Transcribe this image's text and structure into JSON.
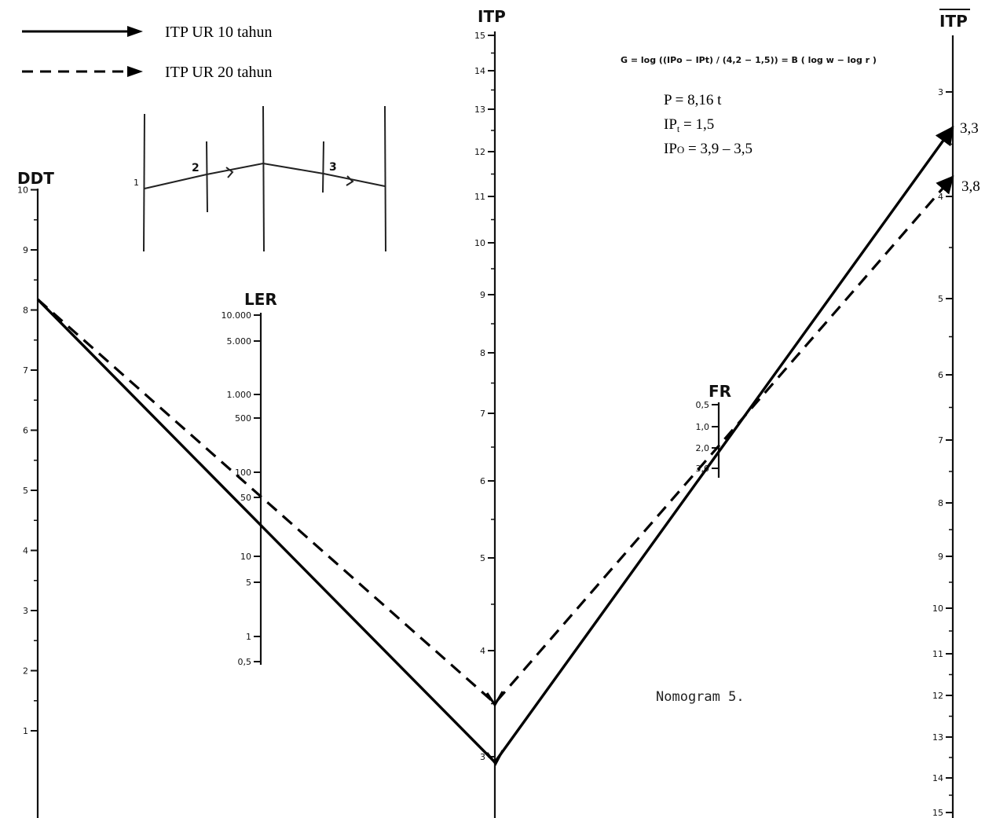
{
  "legend": {
    "solid_label": "ITP UR 10 tahun",
    "dashed_label": "ITP UR 20 tahun"
  },
  "formula": "G = log ((IPo − IPt) / (4,2 − 1,5)) = B ( log w − log r )",
  "parameters": {
    "p": "P = 8,16 t",
    "ipt_base": "IP",
    "ipt_sub": "t",
    "ipt_rest": " = 1,5",
    "ipo_base": "IP",
    "ipo_sub": "O",
    "ipo_rest": " = 3,9 – 3,5"
  },
  "caption": "Nomogram  5.",
  "scales": {
    "ddt": {
      "title": "DDT",
      "ticks": [
        "1",
        "2",
        "3",
        "4",
        "5",
        "6",
        "7",
        "8",
        "9",
        "10"
      ]
    },
    "ler": {
      "title": "LER",
      "ticks": [
        "0,5",
        "1",
        "5",
        "10",
        "50",
        "100",
        "500",
        "1.000",
        "5.000",
        "10.000"
      ]
    },
    "itp": {
      "title": "ITP",
      "ticks": [
        "3",
        "4",
        "5",
        "6",
        "7",
        "8",
        "9",
        "10",
        "11",
        "12",
        "13",
        "14",
        "15"
      ]
    },
    "fr": {
      "title": "FR",
      "ticks": [
        "0,5",
        "1,0",
        "2,0",
        "3,0"
      ]
    },
    "itp_bar": {
      "title": "ITP",
      "ticks": [
        "3",
        "4",
        "5",
        "6",
        "7",
        "8",
        "9",
        "10",
        "11",
        "12",
        "13",
        "14",
        "15"
      ]
    }
  },
  "inset": {
    "labels": [
      "1",
      "2",
      "3"
    ]
  },
  "results": {
    "ur10": "3,3",
    "ur20": "3,8"
  },
  "readings": {
    "ddt_value": 8.2,
    "itp_ur10": 3.0,
    "itp_ur20": 3.5,
    "fr_value": 2.0
  }
}
